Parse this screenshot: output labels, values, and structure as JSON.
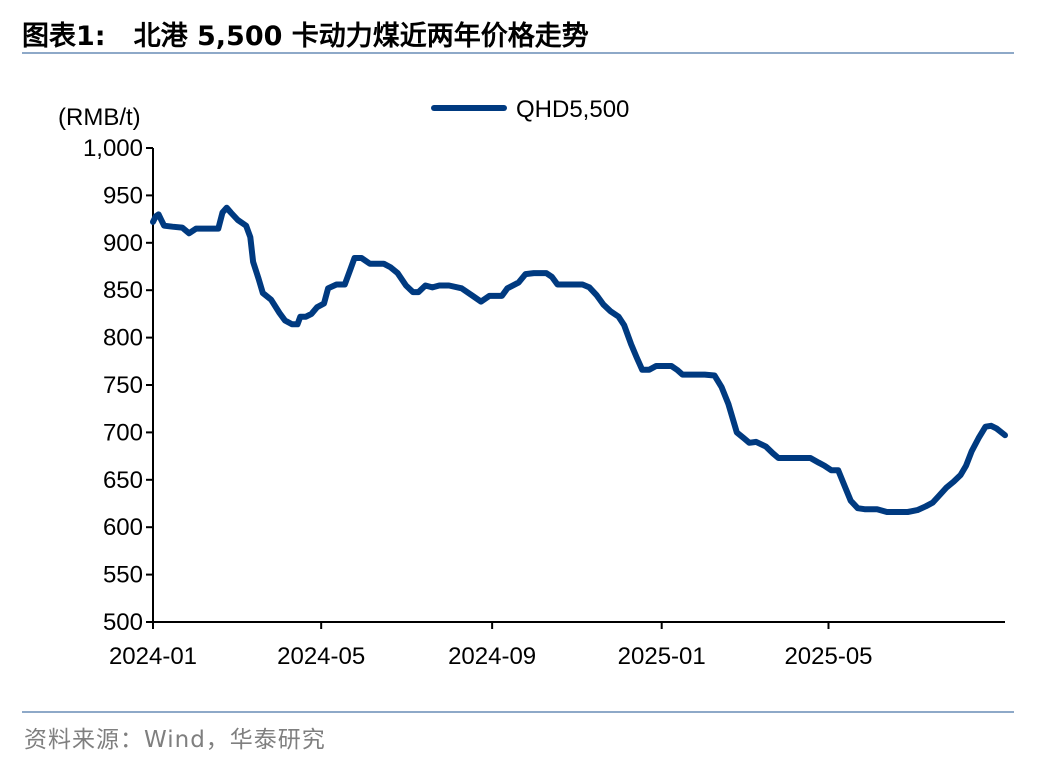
{
  "header": {
    "label": "图表1:",
    "title": "北港 5,500 卡动力煤近两年价格走势"
  },
  "source": "资料来源：Wind，华泰研究",
  "colors": {
    "series": "#003a80",
    "rule": "#8ea9c8",
    "source_text": "#7f7f7f"
  },
  "chart_data": {
    "type": "line",
    "ylabel": "(RMB/t)",
    "xlabel": "",
    "ylim": [
      500,
      1000
    ],
    "yticks": [
      "500",
      "550",
      "600",
      "650",
      "700",
      "750",
      "800",
      "850",
      "900",
      "950",
      "1,000"
    ],
    "xlim": [
      "2024-01-01",
      "2025-09-05"
    ],
    "xticks": [
      "2024-01",
      "2024-05",
      "2024-09",
      "2025-01",
      "2025-05"
    ],
    "legend": "top-center",
    "grid": false,
    "series": [
      {
        "name": "QHD5,500",
        "points": [
          [
            "2024-01-01",
            922
          ],
          [
            "2024-01-03",
            928
          ],
          [
            "2024-01-05",
            930
          ],
          [
            "2024-01-07",
            924
          ],
          [
            "2024-01-09",
            918
          ],
          [
            "2024-01-15",
            917
          ],
          [
            "2024-01-22",
            916
          ],
          [
            "2024-01-27",
            910
          ],
          [
            "2024-02-01",
            915
          ],
          [
            "2024-02-10",
            915
          ],
          [
            "2024-02-17",
            915
          ],
          [
            "2024-02-20",
            932
          ],
          [
            "2024-02-23",
            937
          ],
          [
            "2024-02-26",
            932
          ],
          [
            "2024-03-02",
            924
          ],
          [
            "2024-03-08",
            918
          ],
          [
            "2024-03-11",
            906
          ],
          [
            "2024-03-13",
            880
          ],
          [
            "2024-03-17",
            862
          ],
          [
            "2024-03-20",
            847
          ],
          [
            "2024-03-26",
            840
          ],
          [
            "2024-04-01",
            826
          ],
          [
            "2024-04-05",
            818
          ],
          [
            "2024-04-10",
            814
          ],
          [
            "2024-04-14",
            814
          ],
          [
            "2024-04-16",
            822
          ],
          [
            "2024-04-20",
            822
          ],
          [
            "2024-04-24",
            825
          ],
          [
            "2024-04-28",
            832
          ],
          [
            "2024-05-03",
            836
          ],
          [
            "2024-05-06",
            852
          ],
          [
            "2024-05-12",
            856
          ],
          [
            "2024-05-18",
            856
          ],
          [
            "2024-05-22",
            872
          ],
          [
            "2024-05-25",
            884
          ],
          [
            "2024-05-30",
            884
          ],
          [
            "2024-06-05",
            878
          ],
          [
            "2024-06-15",
            878
          ],
          [
            "2024-06-20",
            874
          ],
          [
            "2024-06-25",
            868
          ],
          [
            "2024-07-01",
            855
          ],
          [
            "2024-07-06",
            848
          ],
          [
            "2024-07-10",
            848
          ],
          [
            "2024-07-15",
            855
          ],
          [
            "2024-07-20",
            853
          ],
          [
            "2024-07-25",
            855
          ],
          [
            "2024-08-01",
            855
          ],
          [
            "2024-08-10",
            852
          ],
          [
            "2024-08-18",
            844
          ],
          [
            "2024-08-24",
            838
          ],
          [
            "2024-08-30",
            844
          ],
          [
            "2024-09-08",
            844
          ],
          [
            "2024-09-12",
            852
          ],
          [
            "2024-09-20",
            858
          ],
          [
            "2024-09-25",
            867
          ],
          [
            "2024-10-01",
            868
          ],
          [
            "2024-10-10",
            868
          ],
          [
            "2024-10-14",
            864
          ],
          [
            "2024-10-18",
            856
          ],
          [
            "2024-11-05",
            856
          ],
          [
            "2024-11-10",
            853
          ],
          [
            "2024-11-15",
            845
          ],
          [
            "2024-11-20",
            835
          ],
          [
            "2024-11-25",
            828
          ],
          [
            "2024-12-01",
            822
          ],
          [
            "2024-12-05",
            813
          ],
          [
            "2024-12-10",
            793
          ],
          [
            "2024-12-14",
            779
          ],
          [
            "2024-12-18",
            766
          ],
          [
            "2024-12-23",
            766
          ],
          [
            "2024-12-28",
            770
          ],
          [
            "2025-01-08",
            770
          ],
          [
            "2025-01-12",
            766
          ],
          [
            "2025-01-16",
            761
          ],
          [
            "2025-01-25",
            761
          ],
          [
            "2025-02-01",
            761
          ],
          [
            "2025-02-08",
            760
          ],
          [
            "2025-02-13",
            748
          ],
          [
            "2025-02-18",
            730
          ],
          [
            "2025-02-24",
            700
          ],
          [
            "2025-03-01",
            694
          ],
          [
            "2025-03-05",
            689
          ],
          [
            "2025-03-10",
            690
          ],
          [
            "2025-03-17",
            685
          ],
          [
            "2025-03-22",
            678
          ],
          [
            "2025-03-26",
            673
          ],
          [
            "2025-04-05",
            673
          ],
          [
            "2025-04-18",
            673
          ],
          [
            "2025-04-24",
            668
          ],
          [
            "2025-04-28",
            665
          ],
          [
            "2025-05-03",
            660
          ],
          [
            "2025-05-08",
            660
          ],
          [
            "2025-05-13",
            642
          ],
          [
            "2025-05-17",
            628
          ],
          [
            "2025-05-22",
            620
          ],
          [
            "2025-05-27",
            619
          ],
          [
            "2025-06-05",
            619
          ],
          [
            "2025-06-12",
            616
          ],
          [
            "2025-06-20",
            616
          ],
          [
            "2025-06-27",
            616
          ],
          [
            "2025-07-04",
            618
          ],
          [
            "2025-07-10",
            622
          ],
          [
            "2025-07-15",
            626
          ],
          [
            "2025-07-20",
            634
          ],
          [
            "2025-07-25",
            642
          ],
          [
            "2025-07-30",
            648
          ],
          [
            "2025-08-04",
            655
          ],
          [
            "2025-08-08",
            665
          ],
          [
            "2025-08-12",
            680
          ],
          [
            "2025-08-17",
            694
          ],
          [
            "2025-08-22",
            706
          ],
          [
            "2025-08-26",
            707
          ],
          [
            "2025-08-30",
            704
          ],
          [
            "2025-09-05",
            697
          ]
        ]
      }
    ]
  }
}
